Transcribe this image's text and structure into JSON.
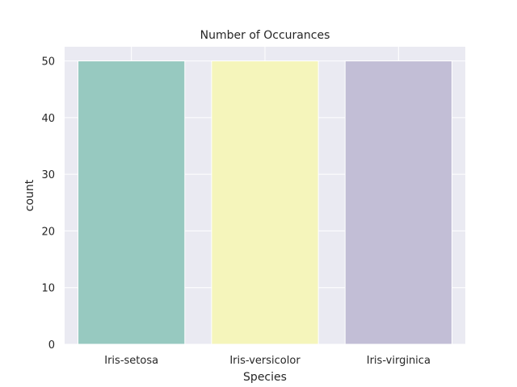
{
  "chart_data": {
    "type": "bar",
    "title": "Number of Occurances",
    "xlabel": "Species",
    "ylabel": "count",
    "categories": [
      "Iris-setosa",
      "Iris-versicolor",
      "Iris-virginica"
    ],
    "values": [
      50,
      50,
      50
    ],
    "ylim": [
      0,
      52.5
    ],
    "yticks": [
      0,
      10,
      20,
      30,
      40,
      50
    ],
    "grid": true,
    "colors": [
      "#97c9c0",
      "#f5f5bb",
      "#c2bed6"
    ],
    "background": "#eaeaf2",
    "gridcolor": "#ffffff"
  }
}
